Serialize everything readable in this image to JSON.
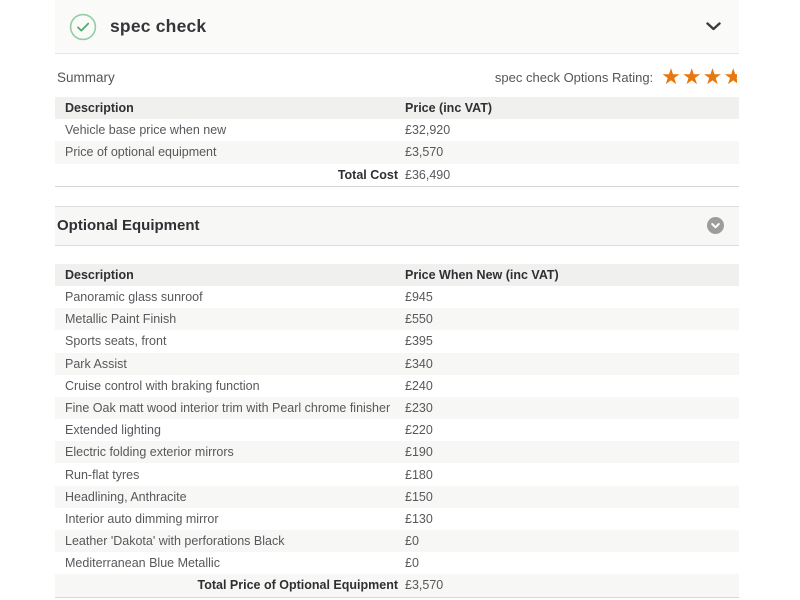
{
  "header": {
    "title": "spec check"
  },
  "summary": {
    "label": "Summary",
    "rating_label": "spec check Options Rating:",
    "rating": {
      "full_stars": 3,
      "half_star": true
    },
    "table": {
      "columns": [
        "Description",
        "Price (inc VAT)"
      ],
      "rows": [
        {
          "description": "Vehicle base price when new",
          "price": "£32,920"
        },
        {
          "description": "Price of optional equipment",
          "price": "£3,570"
        }
      ],
      "total_label": "Total Cost",
      "total_price": "£36,490"
    }
  },
  "optional_equipment": {
    "title": "Optional Equipment",
    "table": {
      "columns": [
        "Description",
        "Price When New (inc VAT)"
      ],
      "rows": [
        {
          "description": "Panoramic glass sunroof",
          "price": "£945"
        },
        {
          "description": "Metallic Paint Finish",
          "price": "£550"
        },
        {
          "description": "Sports seats, front",
          "price": "£395"
        },
        {
          "description": "Park Assist",
          "price": "£340"
        },
        {
          "description": "Cruise control with braking function",
          "price": "£240"
        },
        {
          "description": "Fine Oak matt wood interior trim with Pearl chrome finisher",
          "price": "£230"
        },
        {
          "description": "Extended lighting",
          "price": "£220"
        },
        {
          "description": "Electric folding exterior mirrors",
          "price": "£190"
        },
        {
          "description": "Run-flat tyres",
          "price": "£180"
        },
        {
          "description": "Headlining, Anthracite",
          "price": "£150"
        },
        {
          "description": "Interior auto dimming mirror",
          "price": "£130"
        },
        {
          "description": "Leather 'Dakota' with perforations Black",
          "price": "£0"
        },
        {
          "description": "Mediterranean Blue Metallic",
          "price": "£0"
        }
      ],
      "total_label": "Total Price of Optional Equipment",
      "total_price": "£3,570"
    }
  },
  "colors": {
    "star_orange": "#e8770e",
    "check_green": "#54a873",
    "check_circle_border": "#93cda6",
    "header_bg": "#fafaf8",
    "table_header_bg": "#f0f0ee",
    "alt_row_bg": "#f7f7f5",
    "icon_circle_gray": "#9d9d9d"
  }
}
